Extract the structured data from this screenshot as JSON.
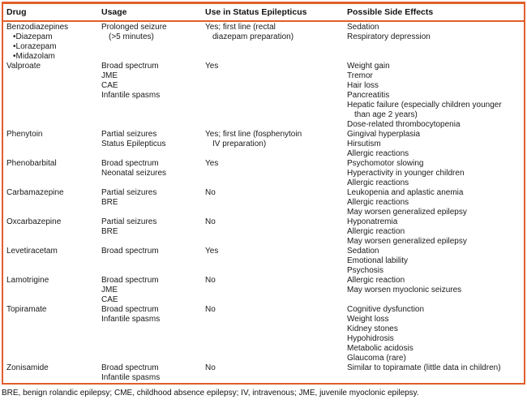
{
  "colors": {
    "accent": "#e05f2a",
    "text": "#1a1a1a"
  },
  "table": {
    "columns": [
      "Drug",
      "Usage",
      "Use in Status Epilepticus",
      "Possible Side Effects"
    ],
    "rows": [
      {
        "drug": [
          {
            "t": "Benzodiazepines"
          },
          {
            "t": "Diazepam",
            "c": "bullet"
          },
          {
            "t": "Lorazepam",
            "c": "bullet"
          },
          {
            "t": "Midazolam",
            "c": "bullet"
          }
        ],
        "usage": [
          {
            "t": "Prolonged seizure"
          },
          {
            "t": "(>5 minutes)",
            "c": "cont"
          }
        ],
        "status": [
          {
            "t": "Yes; first line (rectal"
          },
          {
            "t": "diazepam preparation)",
            "c": "cont"
          }
        ],
        "effects": [
          {
            "t": "Sedation"
          },
          {
            "t": "Respiratory depression"
          }
        ]
      },
      {
        "drug": [
          {
            "t": "Valproate"
          }
        ],
        "usage": [
          {
            "t": "Broad spectrum"
          },
          {
            "t": "JME"
          },
          {
            "t": "CAE"
          },
          {
            "t": "Infantile spasms"
          }
        ],
        "status": [
          {
            "t": "Yes"
          }
        ],
        "effects": [
          {
            "t": "Weight gain"
          },
          {
            "t": "Tremor"
          },
          {
            "t": "Hair loss"
          },
          {
            "t": "Pancreatitis"
          },
          {
            "t": "Hepatic failure (especially children younger"
          },
          {
            "t": "than age 2 years)",
            "c": "cont"
          },
          {
            "t": "Dose-related thrombocytopenia"
          }
        ]
      },
      {
        "drug": [
          {
            "t": "Phenytoin"
          }
        ],
        "usage": [
          {
            "t": "Partial seizures"
          },
          {
            "t": "Status Epilepticus"
          }
        ],
        "status": [
          {
            "t": "Yes; first line (fosphenytoin"
          },
          {
            "t": "IV preparation)",
            "c": "cont"
          }
        ],
        "effects": [
          {
            "t": "Gingival hyperplasia"
          },
          {
            "t": "Hirsutism"
          },
          {
            "t": "Allergic reactions"
          }
        ]
      },
      {
        "drug": [
          {
            "t": "Phenobarbital"
          }
        ],
        "usage": [
          {
            "t": "Broad spectrum"
          },
          {
            "t": "Neonatal seizures"
          }
        ],
        "status": [
          {
            "t": "Yes"
          }
        ],
        "effects": [
          {
            "t": "Psychomotor slowing"
          },
          {
            "t": "Hyperactivity in younger children"
          },
          {
            "t": "Allergic reactions"
          }
        ]
      },
      {
        "drug": [
          {
            "t": "Carbamazepine"
          }
        ],
        "usage": [
          {
            "t": "Partial seizures"
          },
          {
            "t": "BRE"
          }
        ],
        "status": [
          {
            "t": "No"
          }
        ],
        "effects": [
          {
            "t": "Leukopenia and aplastic anemia"
          },
          {
            "t": "Allergic reactions"
          },
          {
            "t": "May worsen generalized epilepsy"
          }
        ]
      },
      {
        "drug": [
          {
            "t": "Oxcarbazepine"
          }
        ],
        "usage": [
          {
            "t": "Partial seizures"
          },
          {
            "t": "BRE"
          }
        ],
        "status": [
          {
            "t": "No"
          }
        ],
        "effects": [
          {
            "t": "Hyponatremia"
          },
          {
            "t": "Allergic reaction"
          },
          {
            "t": "May worsen generalized epilepsy"
          }
        ]
      },
      {
        "drug": [
          {
            "t": "Levetiracetam"
          }
        ],
        "usage": [
          {
            "t": "Broad spectrum"
          }
        ],
        "status": [
          {
            "t": "Yes"
          }
        ],
        "effects": [
          {
            "t": "Sedation"
          },
          {
            "t": "Emotional lability"
          },
          {
            "t": "Psychosis"
          }
        ]
      },
      {
        "drug": [
          {
            "t": "Lamotrigine"
          }
        ],
        "usage": [
          {
            "t": "Broad spectrum"
          },
          {
            "t": "JME"
          },
          {
            "t": "CAE"
          }
        ],
        "status": [
          {
            "t": "No"
          }
        ],
        "effects": [
          {
            "t": "Allergic reaction"
          },
          {
            "t": "May worsen myoclonic seizures"
          }
        ]
      },
      {
        "drug": [
          {
            "t": "Topiramate"
          }
        ],
        "usage": [
          {
            "t": "Broad spectrum"
          },
          {
            "t": "Infantile spasms"
          }
        ],
        "status": [
          {
            "t": "No"
          }
        ],
        "effects": [
          {
            "t": "Cognitive dysfunction"
          },
          {
            "t": "Weight loss"
          },
          {
            "t": "Kidney stones"
          },
          {
            "t": "Hypohidrosis"
          },
          {
            "t": "Metabolic acidosis"
          },
          {
            "t": "Glaucoma (rare)"
          }
        ]
      },
      {
        "drug": [
          {
            "t": "Zonisamide"
          }
        ],
        "usage": [
          {
            "t": "Broad spectrum"
          },
          {
            "t": "Infantile spasms"
          }
        ],
        "status": [
          {
            "t": "No"
          }
        ],
        "effects": [
          {
            "t": "Similar to topiramate (little data in children)"
          }
        ]
      }
    ]
  },
  "footnote": "BRE, benign rolandic epilepsy; CME, childhood absence epilepsy; IV, intravenous; JME, juvenile myoclonic epilepsy."
}
